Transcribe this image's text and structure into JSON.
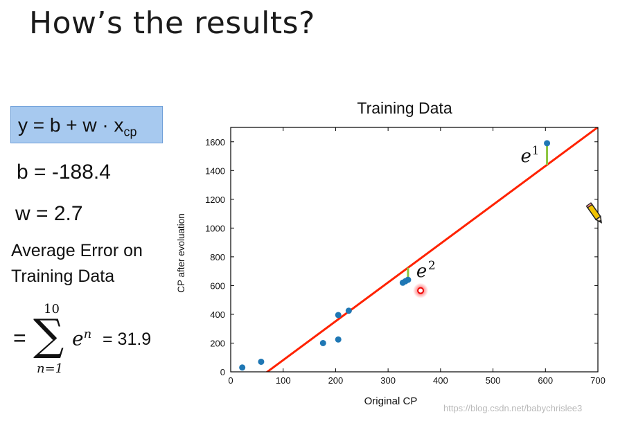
{
  "slide": {
    "title": "How’s the results?",
    "formula": {
      "lhs": "y = b + w · x",
      "subscript": "cp"
    },
    "b_value": "b = -188.4",
    "w_value": "w = 2.7",
    "avg_error_line1": "Average Error on",
    "avg_error_line2": "Training Data",
    "sum": {
      "equals": "=",
      "sigma": "∑",
      "upper": "10",
      "lower": "n=1",
      "term": "e",
      "term_sup": "n",
      "result": "= 31.9"
    }
  },
  "watermark": "https://blog.csdn.net/babychrislee3",
  "colors": {
    "points": "#1f77b4",
    "fit_line": "#ff2200",
    "error_bar": "#8dc63f",
    "formula_box": "#a7c9ef"
  },
  "chart_data": {
    "type": "scatter",
    "title": "Training Data",
    "xlabel": "Original CP",
    "ylabel": "CP after evoluation",
    "xlim": [
      0,
      700
    ],
    "ylim": [
      0,
      1700
    ],
    "xticks": [
      0,
      100,
      200,
      300,
      400,
      500,
      600,
      700
    ],
    "yticks": [
      0,
      200,
      400,
      600,
      800,
      1000,
      1200,
      1400,
      1600
    ],
    "points": [
      {
        "x": 22,
        "y": 30
      },
      {
        "x": 58,
        "y": 70
      },
      {
        "x": 176,
        "y": 200
      },
      {
        "x": 205,
        "y": 225
      },
      {
        "x": 205,
        "y": 395
      },
      {
        "x": 225,
        "y": 425
      },
      {
        "x": 328,
        "y": 620
      },
      {
        "x": 333,
        "y": 630
      },
      {
        "x": 338,
        "y": 640
      },
      {
        "x": 603,
        "y": 1590
      }
    ],
    "fit_line": {
      "b": -188.4,
      "w": 2.7
    },
    "error_annotations": [
      {
        "label": "e",
        "sup": "1",
        "x": 603,
        "y_point": 1590
      },
      {
        "label": "e",
        "sup": "2",
        "x": 338,
        "y_point": 640
      }
    ],
    "highlight_point": {
      "x": 362,
      "y": 565
    }
  }
}
